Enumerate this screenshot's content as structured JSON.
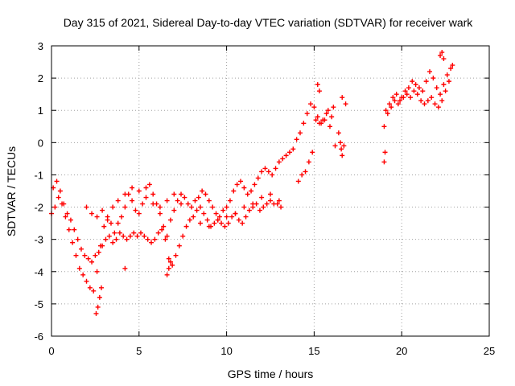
{
  "chart_data": {
    "type": "scatter",
    "title": "Day 315 of 2021, Sidereal Day-to-day VTEC variation (SDTVAR) for receiver wark",
    "xlabel": "GPS time / hours",
    "ylabel": "SDTVAR / TECUs",
    "xlim": [
      0,
      25
    ],
    "ylim": [
      -6,
      3
    ],
    "xticks": [
      "0",
      "5",
      "10",
      "15",
      "20",
      "25"
    ],
    "yticks": [
      "-6",
      "-5",
      "-4",
      "-3",
      "-2",
      "-1",
      "0",
      "1",
      "2",
      "3"
    ],
    "grid": true,
    "marker": "+",
    "colors": {
      "series": "#ff0000"
    },
    "series": [
      {
        "name": "SDTVAR",
        "x": [
          0.0,
          0.2,
          0.4,
          0.6,
          0.8,
          1.0,
          1.2,
          1.4,
          1.6,
          1.8,
          2.0,
          2.2,
          2.4,
          2.6,
          2.8,
          3.0,
          3.2,
          3.4,
          3.6,
          3.8,
          4.0,
          4.2,
          4.4,
          4.6,
          4.8,
          5.0,
          5.2,
          5.4,
          5.6,
          5.8,
          6.0,
          6.2,
          6.4,
          6.6,
          6.8,
          7.0,
          7.2,
          7.4,
          7.6,
          7.8,
          8.0,
          8.2,
          8.4,
          8.6,
          8.8,
          9.0,
          9.2,
          9.4,
          9.6,
          9.8,
          10.0,
          10.2,
          10.4,
          10.6,
          10.8,
          11.0,
          11.2,
          11.4,
          11.6,
          11.8,
          12.0,
          12.2,
          12.4,
          12.6,
          12.8,
          13.0,
          13.2,
          13.4,
          13.6,
          13.8,
          14.0,
          14.2,
          14.4,
          14.6,
          14.8,
          15.0,
          15.2,
          15.4,
          15.6,
          15.8,
          16.0,
          16.2,
          16.4,
          16.6,
          16.8,
          19.0,
          19.2,
          19.4,
          19.6,
          19.8,
          20.0,
          20.2,
          20.4,
          20.6,
          20.8,
          21.0,
          21.2,
          21.4,
          21.6,
          21.8,
          22.0,
          22.2,
          22.4,
          22.6,
          22.8,
          0.1,
          0.3,
          0.5,
          0.7,
          0.9,
          1.1,
          1.3,
          1.5,
          1.7,
          1.9,
          2.1,
          2.3,
          2.5,
          2.7,
          2.9,
          3.1,
          3.3,
          3.5,
          3.7,
          3.9,
          4.1,
          4.3,
          4.5,
          4.7,
          4.9,
          5.1,
          5.3,
          5.5,
          5.7,
          5.9,
          6.1,
          6.3,
          6.5,
          6.7,
          6.9,
          7.1,
          7.3,
          7.5,
          7.7,
          7.9,
          8.1,
          8.3,
          8.5,
          8.7,
          8.9,
          9.1,
          9.3,
          9.5,
          9.7,
          9.9,
          10.1,
          10.3,
          10.5,
          10.7,
          10.9,
          11.1,
          11.3,
          11.5,
          11.7,
          11.9,
          12.1,
          12.3,
          12.5,
          12.7,
          12.9,
          13.1,
          14.1,
          14.3,
          14.5,
          14.7,
          14.9,
          15.1,
          15.3,
          15.5,
          15.7,
          15.9,
          16.1,
          16.5,
          16.7,
          19.1,
          19.3,
          19.5,
          19.7,
          19.9,
          20.1,
          20.3,
          20.5,
          20.7,
          20.9,
          21.1,
          21.3,
          21.5,
          21.7,
          21.9,
          22.1,
          22.3,
          22.5,
          22.7,
          22.9,
          2.0,
          2.3,
          2.6,
          2.9,
          3.2,
          3.5,
          3.8,
          4.2,
          4.6,
          5.0,
          5.4,
          5.8,
          6.2,
          6.6,
          7.0,
          7.4,
          8.5,
          9.0,
          9.5,
          10.0,
          10.5,
          11.0,
          11.5,
          12.0,
          12.5,
          13.0,
          2.55,
          2.65,
          2.75,
          2.85,
          4.2,
          6.6,
          6.7,
          6.8,
          19.0,
          19.05,
          16.55,
          16.6,
          15.2,
          15.3,
          22.2,
          22.3,
          22.4
        ],
        "y": [
          -2.2,
          -2.0,
          -1.7,
          -1.9,
          -2.3,
          -2.7,
          -3.1,
          -3.5,
          -3.9,
          -4.1,
          -4.3,
          -4.5,
          -4.6,
          -4.0,
          -3.2,
          -2.6,
          -2.3,
          -2.5,
          -2.8,
          -2.5,
          -2.3,
          -2.0,
          -1.6,
          -1.8,
          -2.1,
          -2.2,
          -1.9,
          -1.4,
          -1.3,
          -1.6,
          -1.9,
          -2.2,
          -2.6,
          -2.9,
          -2.4,
          -2.1,
          -1.8,
          -1.6,
          -1.7,
          -1.9,
          -2.0,
          -1.8,
          -1.7,
          -1.5,
          -1.6,
          -1.8,
          -2.0,
          -2.2,
          -2.3,
          -2.1,
          -2.0,
          -1.8,
          -1.5,
          -1.3,
          -1.2,
          -1.4,
          -1.6,
          -1.5,
          -1.3,
          -1.1,
          -0.9,
          -0.8,
          -0.9,
          -1.0,
          -0.8,
          -0.6,
          -0.5,
          -0.4,
          -0.3,
          -0.2,
          0.1,
          0.3,
          0.6,
          0.9,
          1.2,
          1.1,
          0.8,
          0.6,
          0.7,
          1.0,
          0.8,
          -0.1,
          0.3,
          1.4,
          1.2,
          0.5,
          0.9,
          1.1,
          1.3,
          1.2,
          1.4,
          1.6,
          1.7,
          1.9,
          1.8,
          1.7,
          1.6,
          1.9,
          2.2,
          2.0,
          1.7,
          1.5,
          1.8,
          2.1,
          2.3,
          -1.4,
          -1.2,
          -1.5,
          -1.9,
          -2.2,
          -2.4,
          -2.7,
          -3.0,
          -3.3,
          -3.5,
          -3.6,
          -3.7,
          -3.5,
          -3.4,
          -3.2,
          -3.0,
          -2.9,
          -3.1,
          -3.0,
          -2.8,
          -2.9,
          -3.0,
          -2.9,
          -2.8,
          -2.9,
          -2.8,
          -2.9,
          -3.0,
          -3.1,
          -3.0,
          -2.8,
          -2.7,
          -3.0,
          -3.6,
          -3.8,
          -3.5,
          -3.2,
          -2.9,
          -2.6,
          -2.4,
          -2.3,
          -2.1,
          -2.0,
          -2.2,
          -2.4,
          -2.6,
          -2.5,
          -2.4,
          -2.5,
          -2.6,
          -2.5,
          -2.3,
          -2.2,
          -2.4,
          -2.5,
          -2.3,
          -2.1,
          -2.0,
          -1.9,
          -2.1,
          -2.0,
          -1.9,
          -1.8,
          -1.9,
          -1.9,
          -2.0,
          -1.2,
          -1.0,
          -0.9,
          -0.6,
          -0.3,
          0.7,
          0.6,
          0.7,
          0.9,
          0.5,
          1.1,
          0.0,
          -0.1,
          1.0,
          1.2,
          1.4,
          1.5,
          1.3,
          1.4,
          1.5,
          1.4,
          1.6,
          1.5,
          1.3,
          1.2,
          1.3,
          1.4,
          1.2,
          1.1,
          1.3,
          1.6,
          1.9,
          2.4,
          -2.0,
          -2.2,
          -2.3,
          -2.1,
          -2.4,
          -2.0,
          -1.8,
          -1.6,
          -1.4,
          -1.5,
          -1.7,
          -1.9,
          -2.0,
          -1.8,
          -1.6,
          -1.9,
          -2.5,
          -2.6,
          -2.4,
          -2.3,
          -2.2,
          -2.0,
          -1.9,
          -1.7,
          -1.6,
          -1.8,
          -5.3,
          -5.1,
          -4.8,
          -4.5,
          -3.9,
          -4.1,
          -3.9,
          -3.7,
          -0.6,
          -0.3,
          -0.2,
          -0.4,
          1.8,
          1.6,
          2.7,
          2.8,
          2.6
        ]
      }
    ]
  }
}
